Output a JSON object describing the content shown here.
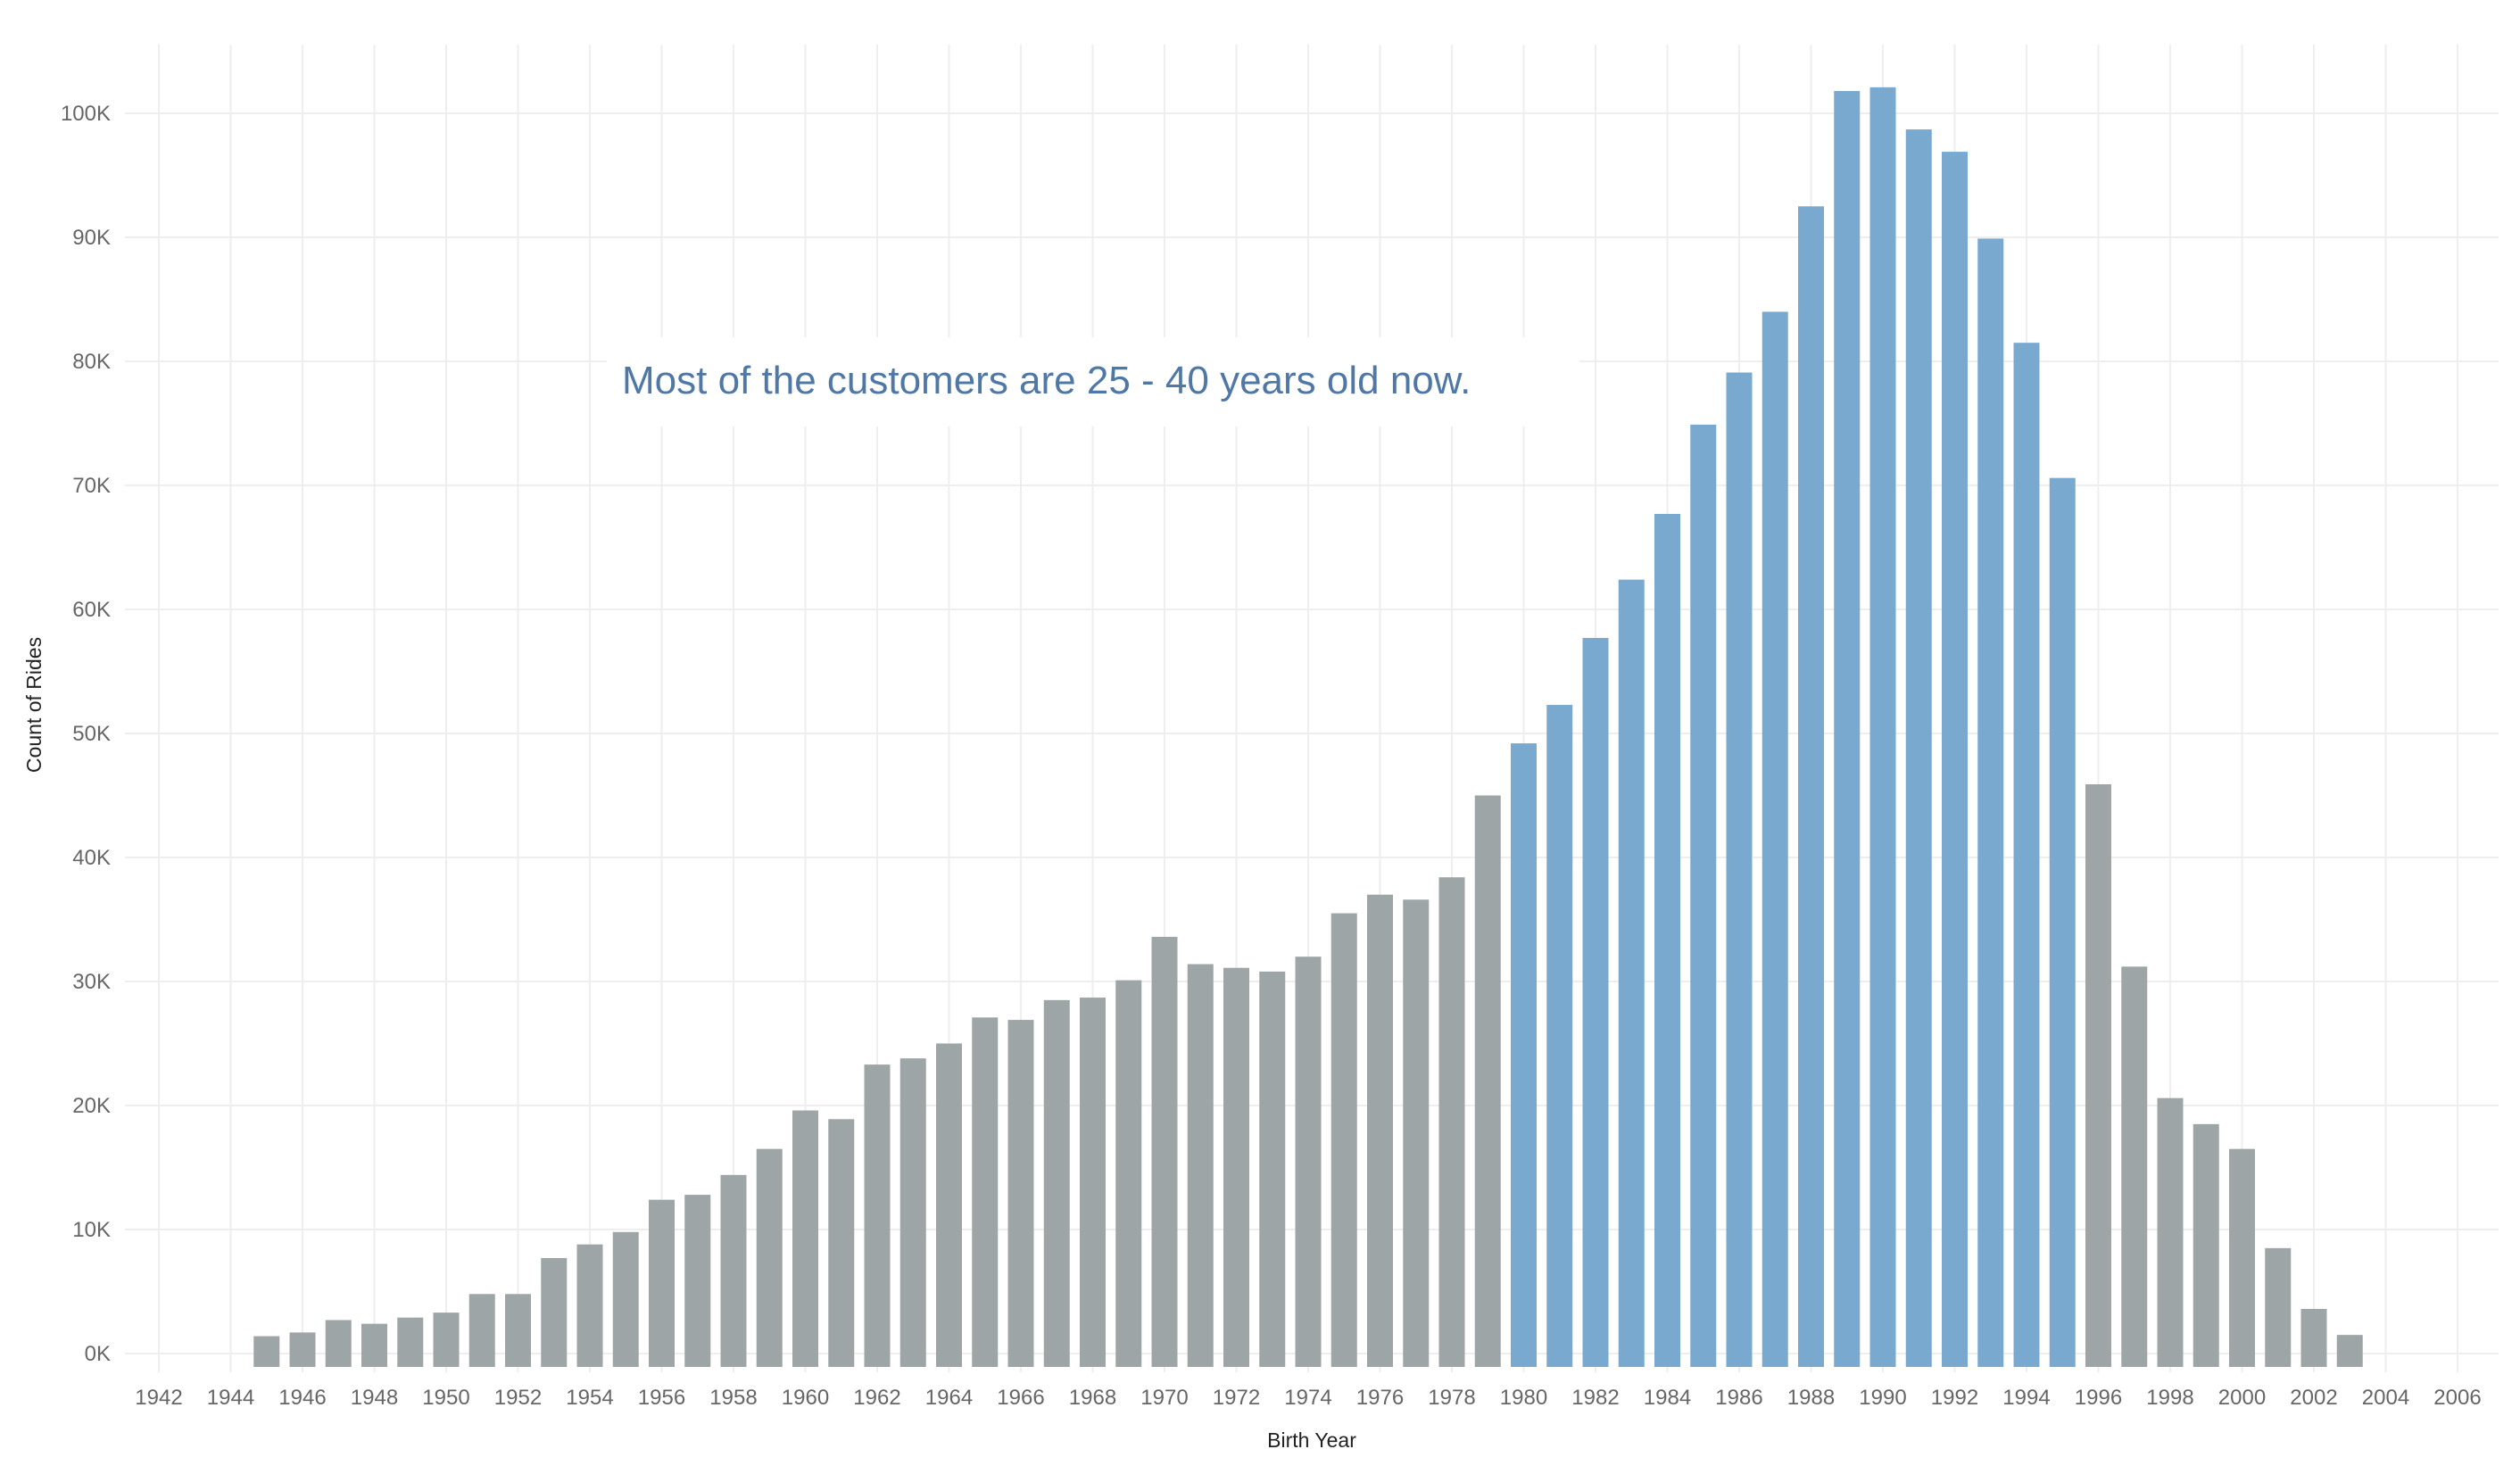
{
  "chart_data": {
    "type": "bar",
    "xlabel": "Birth Year",
    "ylabel": "Count of Rides",
    "annotation": "Most of the customers are 25 - 40 years old now.",
    "x_range": [
      1942,
      2006
    ],
    "ylim": [
      0,
      107000
    ],
    "y_ticks": [
      0,
      10000,
      20000,
      30000,
      40000,
      50000,
      60000,
      70000,
      80000,
      90000,
      100000
    ],
    "y_tick_labels": [
      "0K",
      "10K",
      "20K",
      "30K",
      "40K",
      "50K",
      "60K",
      "70K",
      "80K",
      "90K",
      "100K"
    ],
    "x_tick_labels": [
      "1942",
      "1944",
      "1946",
      "1948",
      "1950",
      "1952",
      "1954",
      "1956",
      "1958",
      "1960",
      "1962",
      "1964",
      "1966",
      "1968",
      "1970",
      "1972",
      "1974",
      "1976",
      "1978",
      "1980",
      "1982",
      "1984",
      "1986",
      "1988",
      "1990",
      "1992",
      "1994",
      "1996",
      "1998",
      "2000",
      "2002",
      "2004",
      "2006"
    ],
    "grid": true,
    "highlight_range": [
      1980,
      1995
    ],
    "colors": {
      "highlight": "#7aa9d0",
      "default": "#9ea5a6"
    },
    "categories": [
      1945,
      1946,
      1947,
      1948,
      1949,
      1950,
      1951,
      1952,
      1953,
      1954,
      1955,
      1956,
      1957,
      1958,
      1959,
      1960,
      1961,
      1962,
      1963,
      1964,
      1965,
      1966,
      1967,
      1968,
      1969,
      1970,
      1971,
      1972,
      1973,
      1974,
      1975,
      1976,
      1977,
      1978,
      1979,
      1980,
      1981,
      1982,
      1983,
      1984,
      1985,
      1986,
      1987,
      1988,
      1989,
      1990,
      1991,
      1992,
      1993,
      1994,
      1995,
      1996,
      1997,
      1998,
      1999,
      2000,
      2001,
      2002,
      2003
    ],
    "values": [
      1400,
      1700,
      2700,
      2400,
      2900,
      3300,
      4800,
      4800,
      7700,
      8800,
      9800,
      12400,
      12800,
      14400,
      16500,
      19600,
      18900,
      23300,
      23800,
      25000,
      27100,
      26900,
      28500,
      28700,
      30100,
      33600,
      31400,
      31100,
      30800,
      32000,
      35500,
      37000,
      36600,
      38400,
      45000,
      49200,
      52300,
      57700,
      62400,
      67700,
      74900,
      79100,
      84000,
      92500,
      101800,
      102100,
      98700,
      96900,
      89900,
      81500,
      70600,
      45900,
      31200,
      20600,
      18500,
      16500,
      8500,
      3600,
      1500
    ]
  }
}
